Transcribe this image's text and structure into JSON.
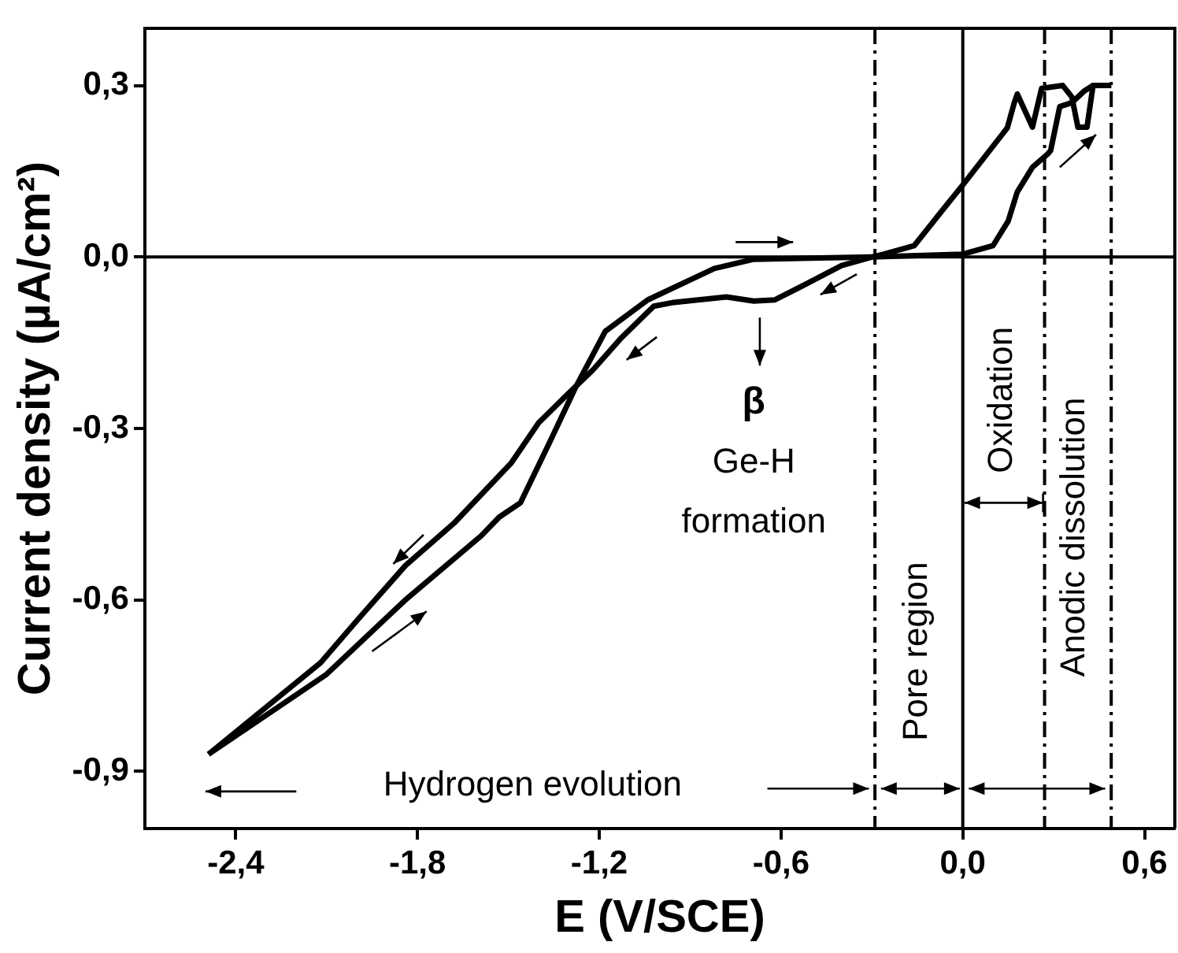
{
  "chart_data": {
    "type": "line",
    "xlabel": "E (V/SCE)",
    "ylabel": "Current density (µA/cm²)",
    "xlim": [
      -2.7,
      0.7
    ],
    "ylim": [
      -1.0,
      0.4
    ],
    "xticks": [
      {
        "value": -2.4,
        "label": "-2,4"
      },
      {
        "value": -1.8,
        "label": "-1,8"
      },
      {
        "value": -1.2,
        "label": "-1,2"
      },
      {
        "value": -0.6,
        "label": "-0,6"
      },
      {
        "value": 0,
        "label": "0,0"
      },
      {
        "value": 0.6,
        "label": "0,6"
      }
    ],
    "yticks": [
      {
        "value": 0.3,
        "label": "0,3"
      },
      {
        "value": 0,
        "label": "0,0"
      },
      {
        "value": -0.3,
        "label": "-0,3"
      },
      {
        "value": -0.6,
        "label": "-0,6"
      },
      {
        "value": -0.9,
        "label": "-0,9"
      }
    ],
    "series": [
      {
        "color": "#000000",
        "type": "line",
        "x": [
          0.49,
          0.43,
          0.41,
          0.38,
          0.36,
          0.33,
          0.26,
          0.23,
          0.18,
          0.17,
          0.147,
          0.0,
          -0.07,
          -0.16,
          -0.26,
          -0.3,
          -0.4,
          -0.52,
          -0.62,
          -0.69,
          -0.78,
          -0.96,
          -1.02,
          -1.13,
          -1.22,
          -1.31,
          -1.4,
          -1.49,
          -1.68,
          -1.84,
          -1.99,
          -2.12,
          -2.49
        ],
        "values": [
          0.3,
          0.3,
          0.227,
          0.227,
          0.28,
          0.3,
          0.295,
          0.227,
          0.285,
          0.27,
          0.226,
          0.126,
          0.08,
          0.02,
          0.005,
          0.0,
          -0.015,
          -0.048,
          -0.075,
          -0.077,
          -0.07,
          -0.08,
          -0.086,
          -0.143,
          -0.197,
          -0.243,
          -0.29,
          -0.36,
          -0.466,
          -0.54,
          -0.63,
          -0.71,
          -0.87
        ]
      },
      {
        "color": "#000000",
        "type": "line",
        "x": [
          -2.49,
          -2.1,
          -1.84,
          -1.59,
          -1.53,
          -1.46,
          -1.36,
          -1.28,
          -1.18,
          -1.04,
          -0.82,
          -0.69,
          -0.3,
          0.0,
          0.1,
          0.15,
          0.18,
          0.23,
          0.28,
          0.29,
          0.32,
          0.36,
          0.4,
          0.43,
          0.49
        ],
        "values": [
          -0.87,
          -0.73,
          -0.6,
          -0.488,
          -0.455,
          -0.43,
          -0.32,
          -0.23,
          -0.13,
          -0.075,
          -0.02,
          -0.004,
          0.0,
          0.005,
          0.02,
          0.063,
          0.114,
          0.157,
          0.18,
          0.186,
          0.263,
          0.27,
          0.29,
          0.3,
          0.3
        ]
      }
    ],
    "ref_lines": [
      {
        "axis": "y",
        "value": 0,
        "color": "#000000",
        "line_style": "solid"
      },
      {
        "axis": "x",
        "value": 0,
        "color": "#000000",
        "line_style": "solid"
      },
      {
        "axis": "x",
        "value": -0.29,
        "color": "#000000",
        "line_style": "dashed"
      },
      {
        "axis": "x",
        "value": 0.27,
        "color": "#000000",
        "line_style": "dashed"
      },
      {
        "axis": "x",
        "value": 0.49,
        "color": "#000000",
        "line_style": "dashed"
      }
    ],
    "annotations": [
      "β",
      "Ge-H",
      "formation",
      "Hydrogen evolution",
      "Pore region",
      "Oxidation",
      "Anodic dissolution"
    ],
    "grid": false,
    "legend": false,
    "marker": "none",
    "line_style": "solid"
  }
}
